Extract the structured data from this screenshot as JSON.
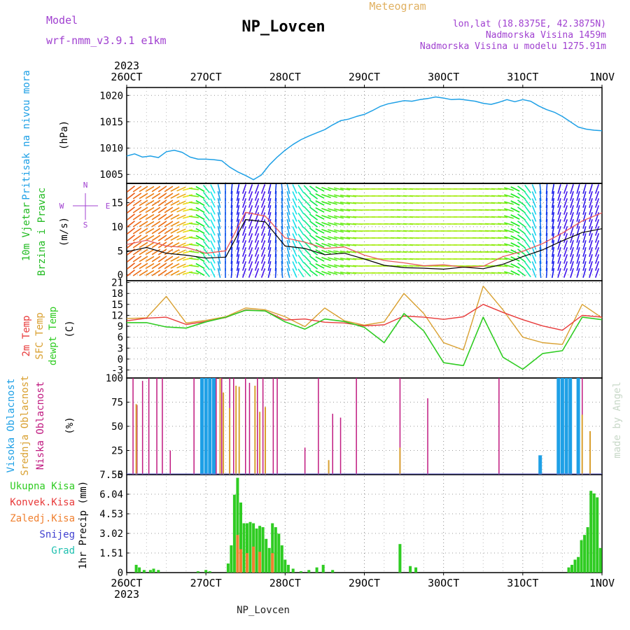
{
  "header": {
    "model_label": "Model",
    "model_name": "wrf-nmm_v3.9.1 e1km",
    "station": "NP_Lovcen",
    "chart_kind": "Meteogram",
    "coords": "lon,lat (18.8375E, 42.3875N)",
    "elevation": "Nadmorska Visina 1459m",
    "model_elevation": "Nadmorska Visina u modelu 1275.91m",
    "year": "2023",
    "footer_station": "NP_Lovcen",
    "credit": "made by Angel"
  },
  "colors": {
    "pressure": "#1ea0e6",
    "wind_axis": "#22bb22",
    "temp2m": "#e83a3a",
    "sfc": "#d9a030",
    "dew": "#2fcc22",
    "high_cloud": "#1ea0e6",
    "mid_cloud": "#d9a030",
    "low_cloud": "#c01a80",
    "total_precip": "#2fcc22",
    "conv_precip": "#e83a3a",
    "frz_precip": "#f08030",
    "snow": "#4040d0",
    "graupel": "#20c0b0",
    "model_label": "#a040d0",
    "chart_kind": "#e0b060",
    "credit": "#c8d8c8"
  },
  "chart_data": {
    "type": "line",
    "x_ticks": [
      "26OCT",
      "27OCT",
      "28OCT",
      "29OCT",
      "30OCT",
      "31OCT",
      "1NOV"
    ],
    "x_range": [
      0,
      6
    ],
    "panels": [
      {
        "id": "pressure",
        "ylabel_lines": [
          "Pritisak na nivou mora",
          "(hPa)"
        ],
        "yticks": [
          1005,
          1010,
          1015,
          1020
        ],
        "ylim": [
          1003.3,
          1021.5
        ],
        "series": [
          {
            "type": "line",
            "x": [
              0,
              0.1,
              0.2,
              0.3,
              0.4,
              0.5,
              0.6,
              0.7,
              0.8,
              0.9,
              1.0,
              1.1,
              1.2,
              1.3,
              1.4,
              1.5,
              1.6,
              1.7,
              1.8,
              1.9,
              2.0,
              2.1,
              2.2,
              2.3,
              2.4,
              2.5,
              2.6,
              2.7,
              2.8,
              2.9,
              3.0,
              3.1,
              3.2,
              3.3,
              3.4,
              3.5,
              3.6,
              3.7,
              3.8,
              3.9,
              4.0,
              4.1,
              4.2,
              4.3,
              4.4,
              4.5,
              4.6,
              4.7,
              4.8,
              4.9,
              5.0,
              5.1,
              5.2,
              5.3,
              5.4,
              5.5,
              5.6,
              5.7,
              5.8,
              5.9,
              6.0
            ],
            "values": [
              1008.5,
              1008.9,
              1008.3,
              1008.5,
              1008.2,
              1009.3,
              1009.6,
              1009.2,
              1008.3,
              1007.9,
              1007.9,
              1007.8,
              1007.6,
              1006.4,
              1005.5,
              1004.8,
              1004.0,
              1004.9,
              1006.8,
              1008.3,
              1009.6,
              1010.7,
              1011.6,
              1012.3,
              1012.9,
              1013.5,
              1014.4,
              1015.2,
              1015.5,
              1016.0,
              1016.4,
              1017.1,
              1017.9,
              1018.4,
              1018.7,
              1019.0,
              1018.9,
              1019.2,
              1019.4,
              1019.7,
              1019.5,
              1019.2,
              1019.3,
              1019.1,
              1018.9,
              1018.5,
              1018.3,
              1018.7,
              1019.2,
              1018.8,
              1019.2,
              1018.9,
              1018.0,
              1017.3,
              1016.8,
              1016.0,
              1015.0,
              1014.0,
              1013.6,
              1013.4,
              1013.3
            ]
          }
        ]
      },
      {
        "id": "wind",
        "ylabel_lines": [
          "10m Vjetar",
          "Brzina i Pravac",
          "(m/s)"
        ],
        "direction_legend": [
          "N",
          "E",
          "S",
          "W"
        ],
        "yticks": [
          0,
          5,
          10,
          15
        ],
        "ylim": [
          -1.2,
          19.0
        ],
        "series": [
          {
            "name": "speed",
            "type": "line",
            "x": [
              0,
              0.25,
              0.5,
              0.75,
              1.0,
              1.25,
              1.5,
              1.75,
              2.0,
              2.25,
              2.5,
              2.75,
              3.0,
              3.25,
              3.5,
              3.75,
              4.0,
              4.25,
              4.5,
              4.75,
              5.0,
              5.25,
              5.5,
              5.75,
              6.0
            ],
            "values": [
              4.8,
              5.7,
              4.5,
              4.1,
              3.5,
              3.7,
              11.5,
              11.0,
              6.0,
              5.5,
              4.2,
              4.5,
              3.3,
              2.0,
              1.5,
              1.4,
              1.2,
              1.6,
              1.3,
              2.2,
              3.8,
              5.2,
              7.1,
              8.8,
              9.6
            ]
          },
          {
            "name": "gust",
            "type": "line",
            "x": [
              0,
              0.25,
              0.5,
              0.75,
              1.0,
              1.25,
              1.5,
              1.75,
              2.0,
              2.25,
              2.5,
              2.75,
              3.0,
              3.25,
              3.5,
              3.75,
              4.0,
              4.25,
              4.5,
              4.75,
              5.0,
              5.25,
              5.5,
              5.75,
              6.0
            ],
            "values": [
              6.3,
              7.2,
              6.0,
              5.7,
              4.5,
              5.0,
              13.0,
              12.2,
              7.7,
              6.8,
              5.5,
              5.8,
              4.1,
              3.0,
              2.5,
              1.9,
              2.1,
              1.6,
              1.8,
              3.8,
              4.9,
              6.5,
              8.7,
              11.2,
              12.9
            ]
          },
          {
            "name": "direction",
            "type": "arrows",
            "x": [
              0,
              0.25,
              0.5,
              0.75,
              1.0,
              1.25,
              1.5,
              1.75,
              2.0,
              2.25,
              2.5,
              2.75,
              3.0,
              3.25,
              3.5,
              3.75,
              4.0,
              4.25,
              4.5,
              4.75,
              5.0,
              5.25,
              5.5,
              5.75,
              6.0
            ],
            "deg": [
              50,
              60,
              55,
              70,
              140,
              180,
              200,
              200,
              170,
              140,
              110,
              100,
              90,
              90,
              95,
              90,
              90,
              90,
              92,
              95,
              130,
              180,
              200,
              195,
              200
            ]
          }
        ]
      },
      {
        "id": "temperature",
        "ylabel_lines": [
          "2m Temp",
          "SFC Temp",
          "dewpt Temp",
          "(C)"
        ],
        "yticks": [
          -3,
          0,
          3,
          6,
          9,
          12,
          15,
          18,
          21
        ],
        "ylim": [
          -5.2,
          21.5
        ],
        "series": [
          {
            "name": "2m Temp",
            "x": [
              0,
              0.25,
              0.5,
              0.75,
              1.0,
              1.25,
              1.5,
              1.75,
              2.0,
              2.25,
              2.5,
              2.75,
              3.0,
              3.25,
              3.5,
              3.75,
              4.0,
              4.25,
              4.5,
              4.75,
              5.0,
              5.25,
              5.5,
              5.75,
              6.0
            ],
            "values": [
              10.5,
              11.2,
              11.5,
              9.5,
              10.3,
              11.4,
              13.5,
              13.2,
              10.7,
              11.0,
              10.1,
              9.9,
              9.1,
              9.4,
              11.8,
              11.5,
              10.9,
              11.6,
              15.0,
              12.8,
              10.8,
              9.1,
              7.9,
              12.0,
              11.5
            ]
          },
          {
            "name": "SFC Temp",
            "x": [
              0,
              0.25,
              0.5,
              0.75,
              1.0,
              1.25,
              1.5,
              1.75,
              2.0,
              2.25,
              2.5,
              2.75,
              3.0,
              3.25,
              3.5,
              3.75,
              4.0,
              4.25,
              4.5,
              4.75,
              5.0,
              5.25,
              5.5,
              5.75,
              6.0
            ],
            "values": [
              11.1,
              11.3,
              17.2,
              9.9,
              10.6,
              11.6,
              14.0,
              13.5,
              11.6,
              8.9,
              14.0,
              10.5,
              9.3,
              10.2,
              18.0,
              12.5,
              4.5,
              2.5,
              20.0,
              13.5,
              6.0,
              4.5,
              4.0,
              15.0,
              11.3
            ]
          },
          {
            "name": "dewpt Temp",
            "x": [
              0,
              0.25,
              0.5,
              0.75,
              1.0,
              1.25,
              1.5,
              1.75,
              2.0,
              2.25,
              2.5,
              2.75,
              3.0,
              3.25,
              3.5,
              3.75,
              4.0,
              4.25,
              4.5,
              4.75,
              5.0,
              5.25,
              5.5,
              5.75,
              6.0
            ],
            "values": [
              10.0,
              10.0,
              8.8,
              8.5,
              10.2,
              11.5,
              13.4,
              13.2,
              10.2,
              8.2,
              11.0,
              10.3,
              8.7,
              4.5,
              12.5,
              7.7,
              -1.0,
              -1.8,
              11.5,
              0.5,
              -2.8,
              1.5,
              2.3,
              11.5,
              10.8
            ]
          }
        ]
      },
      {
        "id": "clouds",
        "ylabel_lines": [
          "Visoka Oblacnost",
          "Srednja Oblacnost",
          "Niska Oblacnost",
          "(%)"
        ],
        "yticks": [
          0,
          25,
          50,
          75,
          100
        ],
        "ylim": [
          0,
          100
        ],
        "series": [
          {
            "name": "low",
            "type": "bar",
            "x": [
              0.08,
              0.13,
              0.2,
              0.28,
              0.38,
              0.45,
              0.55,
              0.85,
              1.05,
              1.13,
              1.2,
              1.3,
              1.35,
              1.5,
              1.55,
              1.65,
              1.72,
              1.85,
              1.9,
              2.25,
              2.42,
              2.6,
              2.7,
              2.9,
              3.45,
              3.8,
              4.7,
              5.75
            ],
            "values": [
              100,
              72,
              97,
              100,
              100,
              100,
              25,
              100,
              100,
              100,
              100,
              100,
              100,
              100,
              95,
              100,
              100,
              100,
              100,
              28,
              100,
              63,
              59,
              100,
              100,
              79,
              100,
              100
            ]
          },
          {
            "name": "mid",
            "type": "bar",
            "x": [
              0.12,
              1.18,
              1.22,
              1.3,
              1.38,
              1.42,
              1.62,
              1.68,
              1.75,
              2.55,
              3.45,
              5.75,
              5.85
            ],
            "values": [
              73,
              100,
              85,
              69,
              92,
              91,
              92,
              65,
              70,
              15,
              28,
              62,
              45
            ]
          },
          {
            "name": "high",
            "type": "bar",
            "x": [
              0.95,
              1.0,
              1.05,
              1.1,
              5.22,
              5.45,
              5.5,
              5.55,
              5.6,
              5.7
            ],
            "values": [
              100,
              100,
              100,
              100,
              20,
              100,
              100,
              100,
              100,
              100
            ]
          }
        ]
      },
      {
        "id": "precip",
        "ylabel_lines": [
          "1hr Precip (mm)"
        ],
        "legend": [
          "Ukupna Kisa",
          "Konvek.Kisa",
          "Zaledj.Kisa",
          "Snijeg",
          "Grad"
        ],
        "yticks": [
          0,
          1.51,
          3.02,
          4.53,
          6.04,
          7.55
        ],
        "ytick_labels": [
          "0",
          "1.51",
          "3.02",
          "4.53",
          "6.04",
          "7.55"
        ],
        "ylim": [
          0,
          7.55
        ],
        "series": [
          {
            "name": "Ukupna Kisa",
            "type": "bar",
            "x": [
              0.12,
              0.16,
              0.22,
              0.3,
              0.34,
              0.4,
              0.9,
              1.0,
              1.05,
              1.28,
              1.32,
              1.36,
              1.4,
              1.44,
              1.48,
              1.52,
              1.56,
              1.6,
              1.64,
              1.68,
              1.72,
              1.76,
              1.8,
              1.84,
              1.88,
              1.92,
              1.96,
              2.0,
              2.04,
              2.1,
              2.2,
              2.3,
              2.4,
              2.48,
              2.6,
              3.45,
              3.58,
              3.65,
              5.58,
              5.62,
              5.66,
              5.7,
              5.74,
              5.78,
              5.82,
              5.86,
              5.9,
              5.94,
              5.98
            ],
            "values": [
              0.6,
              0.4,
              0.2,
              0.2,
              0.3,
              0.2,
              0.1,
              0.2,
              0.1,
              0.7,
              2.1,
              6.0,
              7.3,
              5.4,
              3.8,
              3.8,
              3.9,
              3.8,
              3.4,
              3.6,
              3.5,
              2.6,
              1.9,
              3.8,
              3.5,
              3.0,
              2.1,
              1.0,
              0.6,
              0.3,
              0.1,
              0.2,
              0.4,
              0.6,
              0.2,
              2.2,
              0.5,
              0.4,
              0.4,
              0.6,
              1.0,
              1.2,
              2.5,
              2.9,
              3.5,
              6.3,
              6.1,
              5.8,
              1.9
            ]
          },
          {
            "name": "Konvek.Kisa",
            "type": "bar",
            "x": [
              1.4,
              1.44,
              1.52,
              1.6,
              1.68,
              1.84
            ],
            "values": [
              2.9,
              1.8,
              1.5,
              2.0,
              1.6,
              1.5
            ]
          }
        ]
      }
    ]
  }
}
